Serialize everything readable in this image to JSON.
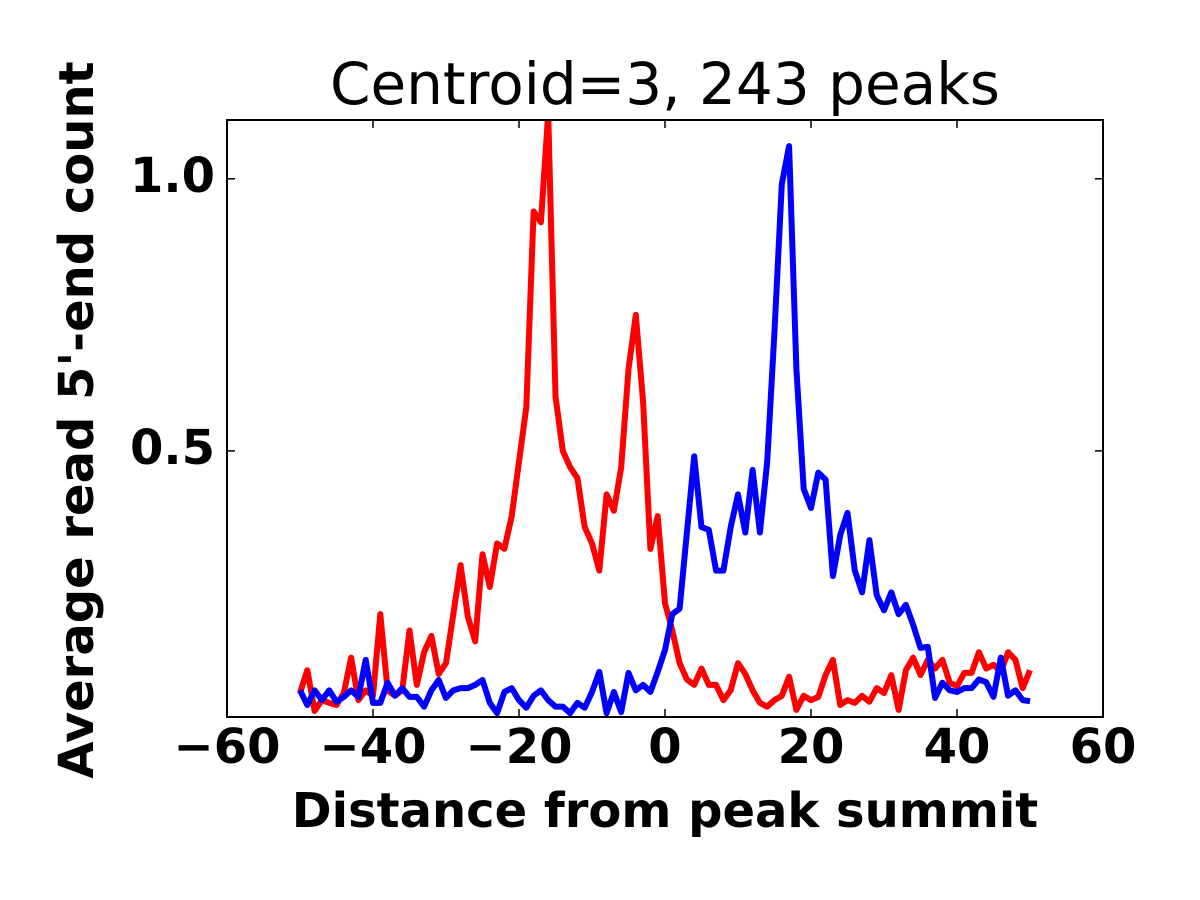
{
  "chart_data": {
    "type": "line",
    "title": "Centroid=3, 243 peaks",
    "x_label": "Distance from peak summit",
    "y_label": "Average read 5'-end count",
    "x": [
      -50,
      -49,
      -48,
      -47,
      -46,
      -45,
      -44,
      -43,
      -42,
      -41,
      -40,
      -39,
      -38,
      -37,
      -36,
      -35,
      -34,
      -33,
      -32,
      -31,
      -30,
      -29,
      -28,
      -27,
      -26,
      -25,
      -24,
      -23,
      -22,
      -21,
      -20,
      -19,
      -18,
      -17,
      -16,
      -15,
      -14,
      -13,
      -12,
      -11,
      -10,
      -9,
      -8,
      -7,
      -6,
      -5,
      -4,
      -3,
      -2,
      -1,
      0,
      1,
      2,
      3,
      4,
      5,
      6,
      7,
      8,
      9,
      10,
      11,
      12,
      13,
      14,
      15,
      16,
      17,
      18,
      19,
      20,
      21,
      22,
      23,
      24,
      25,
      26,
      27,
      28,
      29,
      30,
      31,
      32,
      33,
      34,
      35,
      36,
      37,
      38,
      39,
      40,
      41,
      42,
      43,
      44,
      45,
      46,
      47,
      48,
      49,
      50
    ],
    "series": [
      {
        "color": "#ff0000",
        "values": [
          0.055,
          0.097,
          0.022,
          0.042,
          0.037,
          0.033,
          0.055,
          0.12,
          0.042,
          0.06,
          0.05,
          0.2,
          0.06,
          0.05,
          0.06,
          0.17,
          0.07,
          0.13,
          0.16,
          0.09,
          0.11,
          0.2,
          0.29,
          0.195,
          0.15,
          0.31,
          0.25,
          0.33,
          0.32,
          0.38,
          0.48,
          0.58,
          0.94,
          0.92,
          1.12,
          0.6,
          0.5,
          0.47,
          0.45,
          0.36,
          0.33,
          0.28,
          0.42,
          0.39,
          0.47,
          0.65,
          0.75,
          0.59,
          0.32,
          0.38,
          0.22,
          0.17,
          0.11,
          0.08,
          0.07,
          0.1,
          0.07,
          0.07,
          0.042,
          0.06,
          0.11,
          0.09,
          0.06,
          0.037,
          0.03,
          0.042,
          0.05,
          0.085,
          0.024,
          0.05,
          0.042,
          0.048,
          0.088,
          0.116,
          0.033,
          0.042,
          0.037,
          0.05,
          0.039,
          0.064,
          0.055,
          0.088,
          0.024,
          0.097,
          0.12,
          0.088,
          0.116,
          0.1,
          0.116,
          0.074,
          0.068,
          0.092,
          0.092,
          0.13,
          0.1,
          0.107,
          0.094,
          0.13,
          0.116,
          0.064,
          0.097
        ]
      },
      {
        "color": "#0000ff",
        "values": [
          0.06,
          0.033,
          0.06,
          0.042,
          0.06,
          0.039,
          0.048,
          0.06,
          0.048,
          0.116,
          0.037,
          0.037,
          0.074,
          0.05,
          0.064,
          0.048,
          0.048,
          0.03,
          0.06,
          0.079,
          0.046,
          0.06,
          0.064,
          0.064,
          0.07,
          0.079,
          0.037,
          0.018,
          0.057,
          0.064,
          0.042,
          0.028,
          0.05,
          0.06,
          0.042,
          0.03,
          0.03,
          0.018,
          0.037,
          0.028,
          0.057,
          0.094,
          0.018,
          0.057,
          0.02,
          0.092,
          0.06,
          0.07,
          0.057,
          0.094,
          0.134,
          0.2,
          0.21,
          0.35,
          0.49,
          0.36,
          0.355,
          0.28,
          0.28,
          0.36,
          0.42,
          0.35,
          0.465,
          0.35,
          0.48,
          0.72,
          0.99,
          1.06,
          0.65,
          0.43,
          0.395,
          0.46,
          0.447,
          0.27,
          0.345,
          0.386,
          0.28,
          0.24,
          0.336,
          0.235,
          0.207,
          0.24,
          0.2,
          0.217,
          0.18,
          0.138,
          0.14,
          0.046,
          0.074,
          0.06,
          0.057,
          0.064,
          0.064,
          0.08,
          0.075,
          0.048,
          0.12,
          0.05,
          0.06,
          0.042,
          0.04
        ]
      }
    ],
    "xlim": [
      -60,
      60
    ],
    "xticks": [
      {
        "value": -60,
        "label": "−60"
      },
      {
        "value": -40,
        "label": "−40"
      },
      {
        "value": -20,
        "label": "−20"
      },
      0,
      20,
      40,
      60
    ],
    "ylim": [
      0.011,
      1.108
    ],
    "yticks": [
      0.5,
      {
        "value": 1,
        "label": "1.0"
      }
    ]
  }
}
